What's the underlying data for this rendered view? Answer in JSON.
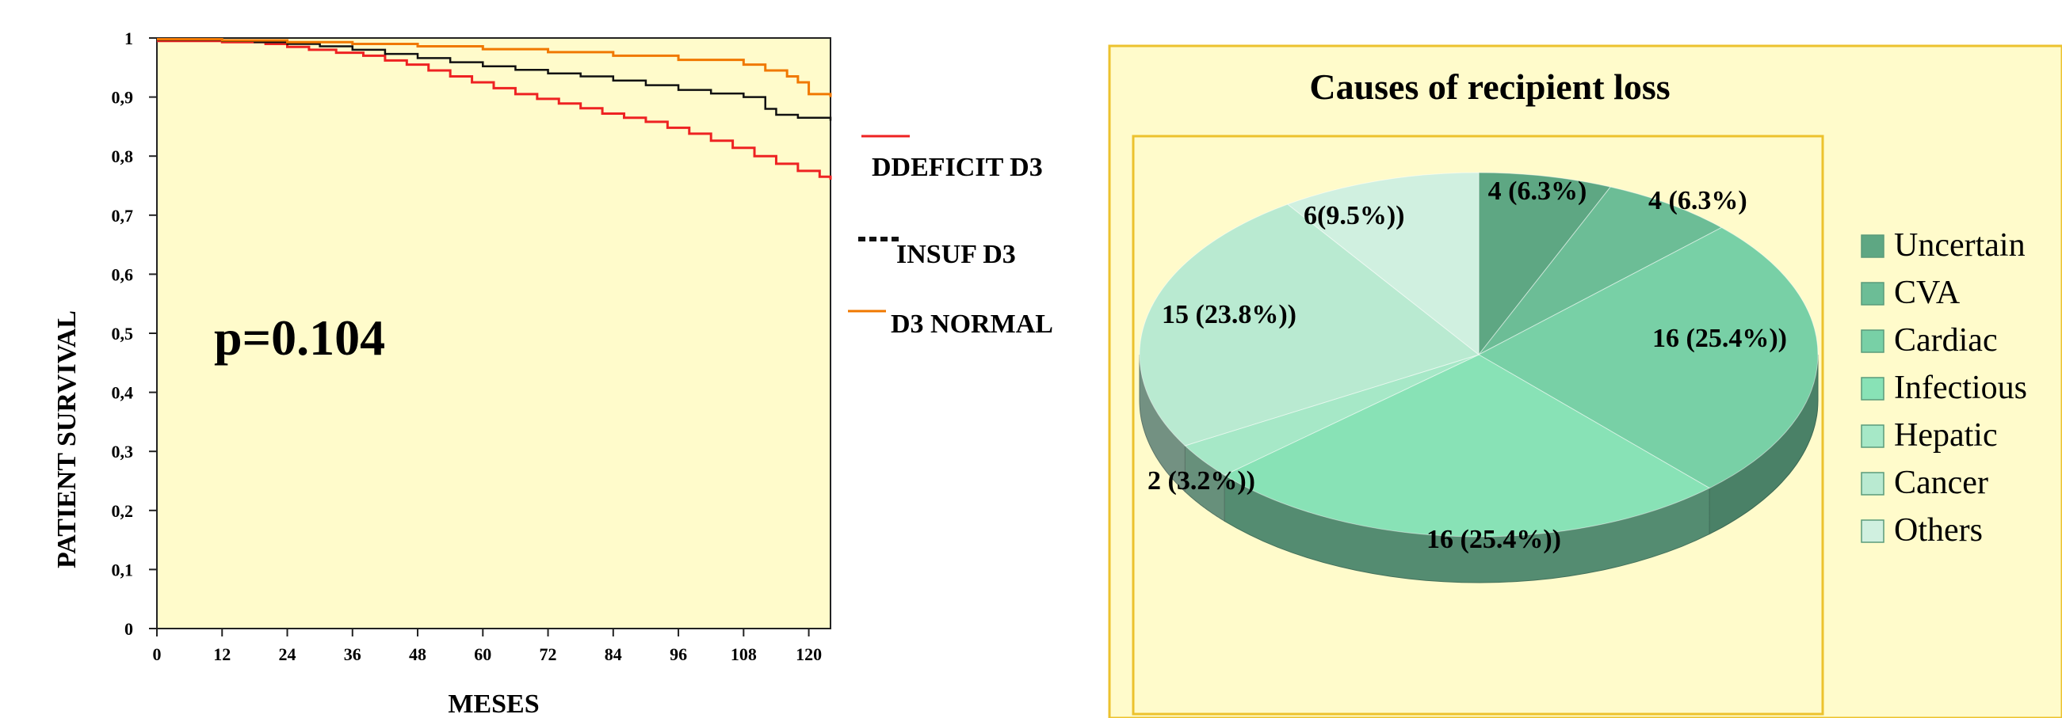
{
  "chart_data": [
    {
      "type": "line",
      "title": "",
      "xlabel": "MESES",
      "ylabel": "PATIENT SURVIVAL",
      "xlim": [
        0,
        124
      ],
      "ylim": [
        0,
        1
      ],
      "x_ticks": [
        "0",
        "12",
        "24",
        "36",
        "48",
        "60",
        "72",
        "84",
        "96",
        "108",
        "120"
      ],
      "y_ticks": [
        "0",
        "0,1",
        "0,2",
        "0,3",
        "0,4",
        "0,5",
        "0,6",
        "0,7",
        "0,8",
        "0,9",
        "1"
      ],
      "annotation": "p=0.104",
      "legend_position": "right",
      "series": [
        {
          "name": "DDEFICIT D3",
          "color": "#ee2222",
          "step": true,
          "x": [
            0,
            12,
            20,
            24,
            28,
            33,
            38,
            42,
            46,
            50,
            54,
            58,
            62,
            66,
            70,
            74,
            78,
            82,
            86,
            90,
            94,
            98,
            102,
            106,
            110,
            114,
            118,
            122,
            124
          ],
          "y": [
            0.995,
            0.993,
            0.99,
            0.985,
            0.98,
            0.975,
            0.97,
            0.962,
            0.955,
            0.945,
            0.935,
            0.925,
            0.915,
            0.905,
            0.897,
            0.889,
            0.881,
            0.872,
            0.865,
            0.858,
            0.848,
            0.838,
            0.826,
            0.814,
            0.8,
            0.787,
            0.775,
            0.765,
            0.76
          ]
        },
        {
          "name": "INSUF D3",
          "color": "#111111",
          "step": true,
          "x": [
            0,
            12,
            18,
            24,
            30,
            36,
            42,
            48,
            54,
            60,
            66,
            72,
            78,
            84,
            90,
            96,
            102,
            108,
            112,
            114,
            118,
            124
          ],
          "y": [
            0.997,
            0.995,
            0.993,
            0.99,
            0.986,
            0.98,
            0.973,
            0.966,
            0.959,
            0.952,
            0.946,
            0.94,
            0.935,
            0.928,
            0.92,
            0.912,
            0.906,
            0.9,
            0.88,
            0.87,
            0.865,
            0.86
          ]
        },
        {
          "name": "D3 NORMAL",
          "color": "#f07800",
          "step": true,
          "x": [
            0,
            12,
            24,
            36,
            48,
            60,
            72,
            84,
            96,
            108,
            112,
            116,
            118,
            120,
            124
          ],
          "y": [
            0.998,
            0.996,
            0.993,
            0.99,
            0.986,
            0.981,
            0.976,
            0.97,
            0.963,
            0.955,
            0.945,
            0.935,
            0.925,
            0.905,
            0.9
          ]
        }
      ]
    },
    {
      "type": "pie",
      "title": "Causes of recipient loss",
      "legend_position": "right",
      "slices": [
        {
          "name": "Uncertain",
          "value": 4,
          "label": "4 (6.3%)",
          "color": "#5ea783"
        },
        {
          "name": "CVA",
          "value": 4,
          "label": "4 (6.3%)",
          "color": "#6cbd96"
        },
        {
          "name": "Cardiac",
          "value": 16,
          "label": "16 (25.4%))",
          "color": "#78d0a6"
        },
        {
          "name": "Infectious",
          "value": 16,
          "label": "16 (25.4%))",
          "color": "#88e2b6"
        },
        {
          "name": "Hepatic",
          "value": 2,
          "label": "2 (3.2%))",
          "color": "#a6e8c7"
        },
        {
          "name": "Cancer",
          "value": 15,
          "label": "15 (23.8%))",
          "color": "#b9ead1"
        },
        {
          "name": "Others",
          "value": 6,
          "label": "6(9.5%))",
          "color": "#d0f0e0"
        }
      ]
    }
  ]
}
